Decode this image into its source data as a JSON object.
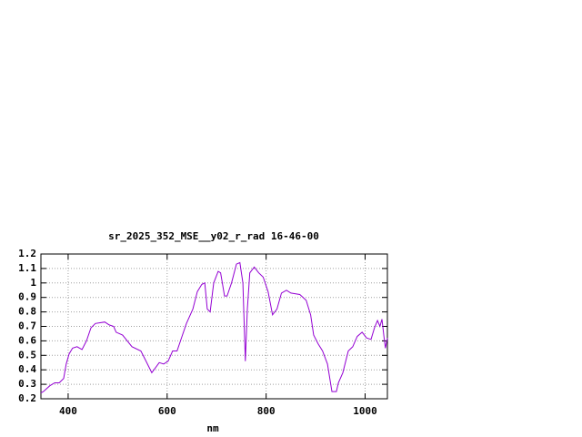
{
  "chart_data": {
    "type": "line",
    "title": "sr_2025_352_MSE__y02_r_rad 16-46-00",
    "x_label": "nm",
    "color": "#9400d3",
    "grid": true,
    "x": [
      345,
      350,
      363,
      373,
      382,
      391,
      396,
      402,
      409,
      418,
      428,
      437,
      446,
      455,
      474,
      483,
      492,
      497,
      510,
      529,
      547,
      556,
      569,
      584,
      593,
      602,
      611,
      620,
      630,
      639,
      652,
      661,
      670,
      676,
      681,
      687,
      694,
      703,
      708,
      716,
      721,
      730,
      740,
      747,
      753,
      758,
      762,
      767,
      776,
      785,
      794,
      804,
      813,
      822,
      831,
      841,
      850,
      868,
      881,
      890,
      896,
      905,
      914,
      924,
      933,
      942,
      946,
      955,
      966,
      975,
      984,
      994,
      1003,
      1012,
      1019,
      1025,
      1030,
      1034,
      1038,
      1041,
      1045
    ],
    "values": [
      0.24,
      0.25,
      0.29,
      0.31,
      0.31,
      0.34,
      0.44,
      0.51,
      0.55,
      0.56,
      0.54,
      0.6,
      0.69,
      0.72,
      0.73,
      0.71,
      0.7,
      0.66,
      0.64,
      0.56,
      0.53,
      0.47,
      0.38,
      0.45,
      0.44,
      0.46,
      0.53,
      0.53,
      0.63,
      0.72,
      0.82,
      0.94,
      0.99,
      1.0,
      0.82,
      0.8,
      1.0,
      1.08,
      1.07,
      0.91,
      0.91,
      1.0,
      1.13,
      1.14,
      1.0,
      0.46,
      0.82,
      1.07,
      1.11,
      1.07,
      1.04,
      0.94,
      0.78,
      0.82,
      0.93,
      0.95,
      0.93,
      0.92,
      0.88,
      0.78,
      0.64,
      0.58,
      0.53,
      0.44,
      0.25,
      0.25,
      0.31,
      0.38,
      0.53,
      0.56,
      0.63,
      0.66,
      0.62,
      0.61,
      0.69,
      0.74,
      0.7,
      0.75,
      0.63,
      0.55,
      0.62
    ],
    "xlim": [
      345,
      1045
    ],
    "xticks": [
      400,
      600,
      800,
      1000
    ],
    "ylim": [
      0.2,
      1.2
    ],
    "yticks": [
      0.2,
      0.3,
      0.4,
      0.5,
      0.6,
      0.7,
      0.8,
      0.9,
      1,
      1.1,
      1.2
    ]
  }
}
